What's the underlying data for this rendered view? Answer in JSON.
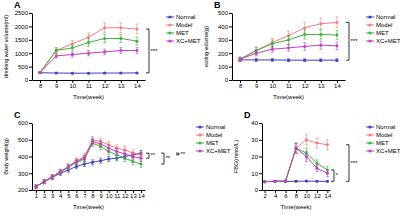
{
  "chart_data": [
    {
      "type": "line",
      "title": "A",
      "x_label": "Time(week)",
      "y_label": "drinking water volume(ml)",
      "x": [
        8,
        9,
        10,
        11,
        12,
        13,
        14
      ],
      "series": [
        {
          "name": "Normal",
          "color": "#4040c0",
          "values": [
            270,
            260,
            255,
            255,
            260,
            260,
            265
          ],
          "errors": [
            20,
            20,
            20,
            20,
            20,
            20,
            20
          ]
        },
        {
          "name": "Model",
          "color": "#f08080",
          "values": [
            280,
            1100,
            1350,
            1600,
            1950,
            1950,
            1900
          ],
          "errors": [
            30,
            100,
            120,
            150,
            180,
            180,
            180
          ]
        },
        {
          "name": "MET",
          "color": "#40b040",
          "values": [
            280,
            1100,
            1200,
            1400,
            1550,
            1550,
            1450
          ],
          "errors": [
            30,
            100,
            110,
            140,
            160,
            150,
            150
          ]
        },
        {
          "name": "XC+MET",
          "color": "#c040c0",
          "values": [
            280,
            900,
            950,
            1000,
            1050,
            1100,
            1100
          ],
          "errors": [
            30,
            80,
            90,
            100,
            100,
            110,
            110
          ]
        }
      ],
      "xlim": [
        7.5,
        14.5
      ],
      "xticks": [
        8,
        9,
        10,
        11,
        12,
        13,
        14
      ],
      "ylim": [
        0,
        2500
      ],
      "yticks": [
        0,
        500,
        1000,
        1500,
        2000,
        2500
      ],
      "marker": "circle",
      "grid": false,
      "legend": "upper right",
      "annotations": [
        {
          "text": "***",
          "series": [
            "Normal",
            "Model"
          ]
        }
      ]
    },
    {
      "type": "line",
      "title": "B",
      "x_label": "Time(week)",
      "y_label": "eating volume(g)",
      "x": [
        8,
        9,
        10,
        11,
        12,
        13,
        14
      ],
      "series": [
        {
          "name": "Normal",
          "color": "#4040c0",
          "values": [
            150,
            150,
            150,
            148,
            148,
            148,
            148
          ],
          "errors": [
            10,
            10,
            10,
            10,
            10,
            10,
            10
          ]
        },
        {
          "name": "Model",
          "color": "#f08080",
          "values": [
            155,
            220,
            280,
            330,
            390,
            420,
            430
          ],
          "errors": [
            15,
            25,
            30,
            35,
            40,
            40,
            40
          ]
        },
        {
          "name": "MET",
          "color": "#40b040",
          "values": [
            155,
            220,
            270,
            300,
            340,
            340,
            335
          ],
          "errors": [
            15,
            25,
            28,
            32,
            35,
            35,
            35
          ]
        },
        {
          "name": "XC+MET",
          "color": "#c040c0",
          "values": [
            155,
            200,
            230,
            240,
            250,
            260,
            255
          ],
          "errors": [
            15,
            20,
            22,
            25,
            28,
            30,
            28
          ]
        }
      ],
      "xlim": [
        7.5,
        14.5
      ],
      "xticks": [
        8,
        9,
        10,
        11,
        12,
        13,
        14
      ],
      "ylim": [
        0,
        500
      ],
      "yticks": [
        0,
        100,
        200,
        300,
        400,
        500
      ],
      "marker": "circle",
      "grid": false,
      "legend": "upper right",
      "annotations": [
        {
          "text": "***",
          "series": [
            "Normal",
            "Model"
          ]
        }
      ]
    },
    {
      "type": "line",
      "title": "C",
      "x_label": "Time(week)",
      "y_label": "Body weight(g)",
      "x": [
        1,
        2,
        3,
        4,
        5,
        6,
        7,
        8,
        9,
        10,
        11,
        12,
        13,
        14
      ],
      "series": [
        {
          "name": "Normal",
          "color": "#4040c0",
          "values": [
            220,
            250,
            275,
            300,
            320,
            340,
            355,
            365,
            375,
            385,
            390,
            400,
            410,
            420
          ],
          "errors": [
            10,
            12,
            12,
            13,
            14,
            14,
            15,
            15,
            15,
            15,
            16,
            16,
            16,
            16
          ]
        },
        {
          "name": "Model",
          "color": "#f08080",
          "values": [
            220,
            250,
            280,
            310,
            340,
            375,
            400,
            500,
            490,
            470,
            450,
            440,
            420,
            410
          ],
          "errors": [
            10,
            12,
            13,
            14,
            15,
            16,
            18,
            20,
            20,
            20,
            20,
            20,
            20,
            20
          ]
        },
        {
          "name": "MET",
          "color": "#40b040",
          "values": [
            220,
            250,
            278,
            305,
            335,
            365,
            385,
            480,
            460,
            430,
            410,
            390,
            370,
            355
          ],
          "errors": [
            10,
            12,
            13,
            14,
            15,
            15,
            17,
            20,
            20,
            20,
            20,
            20,
            20,
            20
          ]
        },
        {
          "name": "XC+MET",
          "color": "#c040c0",
          "values": [
            220,
            250,
            278,
            308,
            340,
            370,
            390,
            490,
            475,
            450,
            430,
            415,
            400,
            390
          ],
          "errors": [
            10,
            12,
            13,
            14,
            15,
            16,
            17,
            20,
            20,
            20,
            20,
            20,
            20,
            20
          ]
        }
      ],
      "xlim": [
        0.5,
        14.5
      ],
      "xticks": [
        1,
        2,
        3,
        4,
        5,
        6,
        7,
        8,
        9,
        10,
        11,
        12,
        13,
        14
      ],
      "ylim": [
        200,
        600
      ],
      "yticks": [
        200,
        300,
        400,
        500,
        600
      ],
      "marker": "circle",
      "grid": false,
      "legend": "upper right",
      "annotations": [
        {
          "text": "**",
          "series": [
            "Normal",
            "XC+MET"
          ]
        },
        {
          "text": "**",
          "series": [
            "Normal",
            "MET"
          ]
        },
        {
          "text": "**",
          "series": [
            "Normal",
            "Model"
          ]
        }
      ]
    },
    {
      "type": "line",
      "title": "D",
      "x_label": "Time(week)",
      "y_label": "FBG(mmol/L)",
      "x": [
        2,
        4,
        6,
        8,
        10,
        12,
        14
      ],
      "series": [
        {
          "name": "Normal",
          "color": "#4040c0",
          "values": [
            5,
            5.2,
            5.1,
            5.2,
            5.3,
            5.2,
            5.2
          ],
          "errors": [
            0.3,
            0.3,
            0.3,
            0.3,
            0.3,
            0.3,
            0.3
          ]
        },
        {
          "name": "Model",
          "color": "#f08080",
          "values": [
            5,
            5.2,
            5.3,
            25,
            30,
            28,
            27
          ],
          "errors": [
            0.3,
            0.4,
            0.5,
            3,
            3,
            3,
            3
          ]
        },
        {
          "name": "MET",
          "color": "#40b040",
          "values": [
            5,
            5.2,
            5.3,
            25,
            22,
            16,
            12
          ],
          "errors": [
            0.3,
            0.4,
            0.5,
            3,
            3,
            2,
            2
          ]
        },
        {
          "name": "XC+MET",
          "color": "#c040c0",
          "values": [
            5,
            5.2,
            5.3,
            25,
            20,
            13,
            10
          ],
          "errors": [
            0.3,
            0.4,
            0.5,
            3,
            3,
            2,
            2
          ]
        }
      ],
      "xlim": [
        1.5,
        14.5
      ],
      "xticks": [
        2,
        4,
        6,
        8,
        10,
        12,
        14
      ],
      "ylim": [
        0,
        40
      ],
      "yticks": [
        0,
        10,
        20,
        30,
        40
      ],
      "marker": "circle",
      "grid": false,
      "legend": "upper right",
      "annotations": [
        {
          "text": "*",
          "series": [
            "Normal",
            "MET"
          ]
        },
        {
          "text": "***",
          "series": [
            "Normal",
            "Model"
          ]
        }
      ]
    }
  ]
}
